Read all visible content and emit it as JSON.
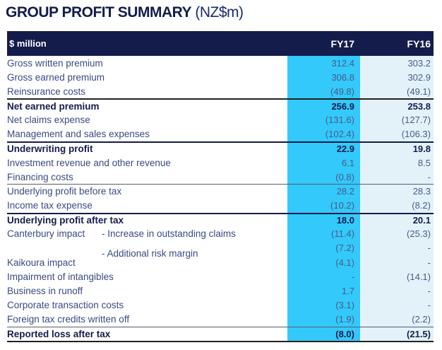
{
  "title": {
    "bold": "GROUP PROFIT SUMMARY",
    "light": " (NZ$m)"
  },
  "header": {
    "label": "$ million",
    "fy17": "FY17",
    "fy16": "FY16"
  },
  "colors": {
    "header_bg": "#141c4c",
    "fy17_bg": "#33c9fa",
    "fy16_bg": "#e3f2f9"
  },
  "rows": [
    {
      "label": "Gross written premium",
      "sub": "",
      "fy17": "312.4",
      "fy16": "303.2",
      "style": "normal",
      "line": ""
    },
    {
      "label": "Gross earned premium",
      "sub": "",
      "fy17": "306.8",
      "fy16": "302.9",
      "style": "normal",
      "line": ""
    },
    {
      "label": "Reinsurance costs",
      "sub": "",
      "fy17": "(49.8)",
      "fy16": "(49.1)",
      "style": "normal",
      "line": ""
    },
    {
      "label": "Net earned premium",
      "sub": "",
      "fy17": "256.9",
      "fy16": "253.8",
      "style": "bold",
      "line": "black"
    },
    {
      "label": "Net claims expense",
      "sub": "",
      "fy17": "(131.6)",
      "fy16": "(127.7)",
      "style": "normal",
      "line": ""
    },
    {
      "label": "Management and sales expenses",
      "sub": "",
      "fy17": "(102.4)",
      "fy16": "(106.3)",
      "style": "normal",
      "line": ""
    },
    {
      "label": "Underwriting profit",
      "sub": "",
      "fy17": "22.9",
      "fy16": "19.8",
      "style": "bold",
      "line": "dark"
    },
    {
      "label": "Investment revenue and other revenue",
      "sub": "",
      "fy17": "6.1",
      "fy16": "8.5",
      "style": "normal",
      "line": ""
    },
    {
      "label": "Financing costs",
      "sub": "",
      "fy17": "(0.8)",
      "fy16": "-",
      "style": "normal",
      "line": ""
    },
    {
      "label": "Underlying profit before tax",
      "sub": "",
      "fy17": "28.2",
      "fy16": "28.3",
      "style": "normal",
      "line": "thin"
    },
    {
      "label": "Income tax expense",
      "sub": "",
      "fy17": "(10.2)",
      "fy16": "(8.2)",
      "style": "normal",
      "line": ""
    },
    {
      "label": "Underlying profit after tax",
      "sub": "",
      "fy17": "18.0",
      "fy16": "20.1",
      "style": "bold",
      "line": "dark"
    },
    {
      "label": "Canterbury impact",
      "sub": "- Increase in outstanding claims",
      "fy17": "(11.4)",
      "fy16": "(25.3)",
      "style": "normal",
      "line": ""
    },
    {
      "label": "",
      "sub": "- Additional risk margin",
      "fy17": "(7.2)",
      "fy16": "-",
      "style": "normal",
      "line": ""
    },
    {
      "label": "Kaikoura impact",
      "sub": "",
      "fy17": "(4.1)",
      "fy16": "-",
      "style": "normal",
      "line": ""
    },
    {
      "label": "Impairment of intangibles",
      "sub": "",
      "fy17": "-",
      "fy16": "(14.1)",
      "style": "normal",
      "line": ""
    },
    {
      "label": "Business in runoff",
      "sub": "",
      "fy17": "1.7",
      "fy16": "-",
      "style": "normal",
      "line": ""
    },
    {
      "label": "Corporate transaction costs",
      "sub": "",
      "fy17": "(3.1)",
      "fy16": "-",
      "style": "normal",
      "line": ""
    },
    {
      "label": "Foreign tax credits written off",
      "sub": "",
      "fy17": "(1.9)",
      "fy16": "(2.2)",
      "style": "normal",
      "line": ""
    },
    {
      "label": "Reported loss after tax",
      "sub": "",
      "fy17": "(8.0)",
      "fy16": "(21.5)",
      "style": "bold",
      "line": "thin"
    }
  ]
}
